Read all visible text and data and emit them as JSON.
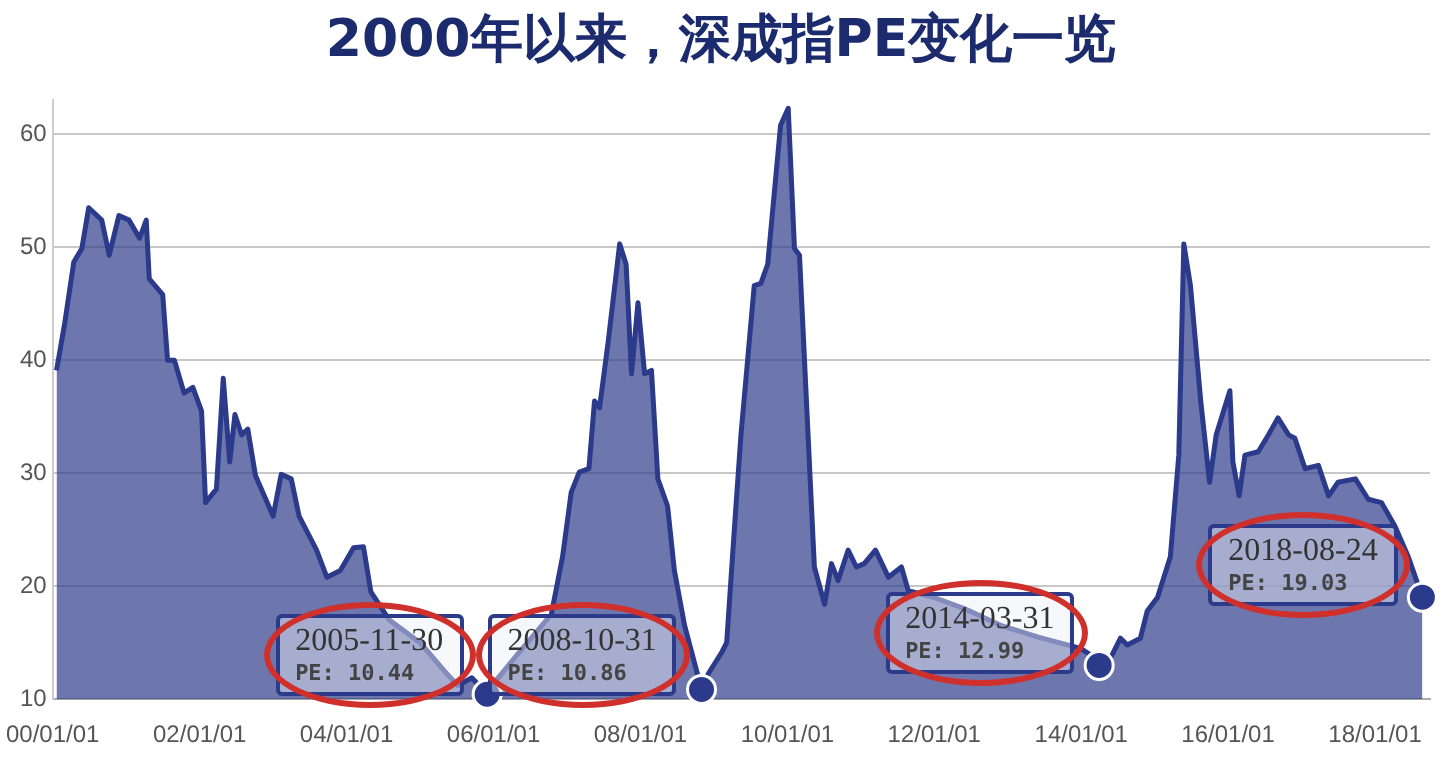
{
  "chart_data": {
    "type": "area",
    "title": "2000年以来，深成指PE变化一览",
    "x": [
      "2000-01-20",
      "2000-03-01",
      "2000-04-15",
      "2000-05-25",
      "2000-06-28",
      "2000-09-01",
      "2000-10-08",
      "2000-11-25",
      "2001-01-15",
      "2001-03-08",
      "2001-04-10",
      "2001-04-25",
      "2001-07-01",
      "2001-07-25",
      "2001-08-28",
      "2001-10-15",
      "2001-11-28",
      "2002-01-10",
      "2002-01-30",
      "2002-03-25",
      "2002-04-28",
      "2002-05-30",
      "2002-06-25",
      "2002-07-28",
      "2002-08-28",
      "2002-10-05",
      "2003-01-01",
      "2003-02-10",
      "2003-04-01",
      "2003-05-10",
      "2003-08-05",
      "2003-09-25",
      "2003-12-01",
      "2004-02-05",
      "2004-03-25",
      "2004-05-01",
      "2004-08-01",
      "2005-01-01",
      "2005-05-01",
      "2005-07-08",
      "2005-09-15",
      "2005-11-30",
      "2006-01-20",
      "2006-05-01",
      "2006-10-15",
      "2006-12-10",
      "2007-01-22",
      "2007-03-03",
      "2007-04-20",
      "2007-05-18",
      "2007-06-12",
      "2007-07-26",
      "2007-09-20",
      "2007-10-22",
      "2007-11-18",
      "2007-12-20",
      "2008-01-22",
      "2008-02-25",
      "2008-03-28",
      "2008-05-15",
      "2008-06-18",
      "2008-08-08",
      "2008-10-31",
      "2008-12-05",
      "2009-02-10",
      "2009-03-05",
      "2009-04-12",
      "2009-05-15",
      "2009-07-20",
      "2009-08-22",
      "2009-09-25",
      "2009-11-28",
      "2010-01-05",
      "2010-02-05",
      "2010-03-02",
      "2010-05-15",
      "2010-07-05",
      "2010-08-08",
      "2010-09-10",
      "2010-10-30",
      "2010-12-10",
      "2011-01-18",
      "2011-03-15",
      "2011-05-18",
      "2011-07-22",
      "2011-08-25",
      "2012-01-01",
      "2012-06-01",
      "2012-12-01",
      "2013-06-01",
      "2013-12-28",
      "2014-02-18",
      "2014-03-31",
      "2014-05-25",
      "2014-07-15",
      "2014-08-18",
      "2014-10-22",
      "2014-11-25",
      "2015-01-15",
      "2015-03-20",
      "2015-05-01",
      "2015-05-26",
      "2015-06-28",
      "2015-08-18",
      "2015-10-01",
      "2015-11-03",
      "2016-01-10",
      "2016-01-25",
      "2016-02-25",
      "2016-03-25",
      "2016-05-30",
      "2016-07-20",
      "2016-09-05",
      "2016-10-28",
      "2016-11-28",
      "2017-01-18",
      "2017-03-25",
      "2017-05-15",
      "2017-07-01",
      "2017-09-25",
      "2017-11-28",
      "2018-02-02",
      "2018-04-10",
      "2018-06-15",
      "2018-08-24"
    ],
    "series": [
      {
        "color": "#2b3a8a",
        "values": [
          39.1,
          43.3,
          48.7,
          49.9,
          53.5,
          52.4,
          49.3,
          52.8,
          52.4,
          50.8,
          52.4,
          47.2,
          45.8,
          40.0,
          40.0,
          37.1,
          37.6,
          35.5,
          27.4,
          28.6,
          38.4,
          31.0,
          35.2,
          33.4,
          33.9,
          29.8,
          26.2,
          29.9,
          29.5,
          26.2,
          23.2,
          20.8,
          21.4,
          23.4,
          23.5,
          19.5,
          17.0,
          15.0,
          12.5,
          11.2,
          11.9,
          10.44,
          11.8,
          14.0,
          17.5,
          22.6,
          28.3,
          30.1,
          30.4,
          36.4,
          35.8,
          41.8,
          50.3,
          48.5,
          38.8,
          45.1,
          38.8,
          39.1,
          29.5,
          27.1,
          21.4,
          16.5,
          10.86,
          12.3,
          14.2,
          15.0,
          25.0,
          33.4,
          46.6,
          46.8,
          48.5,
          60.8,
          62.3,
          49.9,
          49.3,
          21.7,
          18.4,
          22.0,
          20.5,
          23.2,
          21.7,
          22.0,
          23.2,
          20.8,
          21.7,
          19.6,
          19.0,
          18.0,
          16.5,
          15.5,
          14.5,
          13.9,
          12.99,
          13.6,
          15.4,
          14.8,
          15.4,
          17.8,
          19.0,
          22.6,
          31.6,
          50.3,
          46.6,
          36.4,
          29.2,
          33.4,
          37.3,
          31.0,
          28.0,
          31.6,
          31.9,
          33.4,
          34.9,
          33.4,
          33.1,
          30.4,
          30.7,
          28.0,
          29.2,
          29.5,
          27.7,
          27.4,
          25.3,
          22.6,
          19.03
        ]
      }
    ],
    "xlim": [
      "2000-01-01",
      "2018-10-01"
    ],
    "xticks": [
      {
        "value": "2000-01-01",
        "label": "00/01/01"
      },
      {
        "value": "2002-01-01",
        "label": "02/01/01"
      },
      {
        "value": "2004-01-01",
        "label": "04/01/01"
      },
      {
        "value": "2006-01-01",
        "label": "06/01/01"
      },
      {
        "value": "2008-01-01",
        "label": "08/01/01"
      },
      {
        "value": "2010-01-01",
        "label": "10/01/01"
      },
      {
        "value": "2012-01-01",
        "label": "12/01/01"
      },
      {
        "value": "2014-01-01",
        "label": "14/01/01"
      },
      {
        "value": "2016-01-01",
        "label": "16/01/01"
      },
      {
        "value": "2018-01-01",
        "label": "18/01/01"
      }
    ],
    "ylim": [
      10,
      63
    ],
    "yticks": [
      10,
      20,
      30,
      40,
      50,
      60
    ],
    "grid": "y",
    "legend": false,
    "marker": "none",
    "annotations": [
      {
        "text": "2005-11-30\nPE: 10.44",
        "x": "2005-11-30",
        "y": 10.44
      },
      {
        "text": "2008-10-31\nPE: 10.86",
        "x": "2008-10-31",
        "y": 10.86
      },
      {
        "text": "2014-03-31\nPE: 12.99",
        "x": "2014-03-31",
        "y": 12.99
      },
      {
        "text": "2018-08-24\nPE: 19.03",
        "x": "2018-08-24",
        "y": 19.03
      }
    ]
  }
}
